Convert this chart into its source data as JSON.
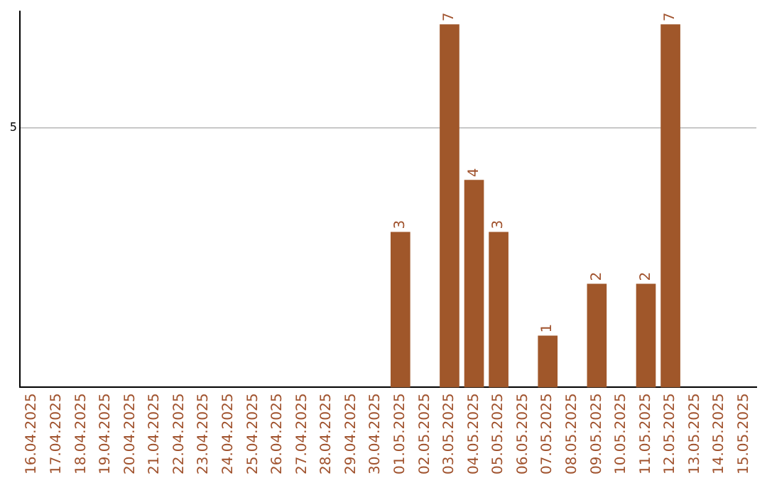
{
  "chart_data": {
    "type": "bar",
    "categories": [
      "16.04.2025",
      "17.04.2025",
      "18.04.2025",
      "19.04.2025",
      "20.04.2025",
      "21.04.2025",
      "22.04.2025",
      "23.04.2025",
      "24.04.2025",
      "25.04.2025",
      "26.04.2025",
      "27.04.2025",
      "28.04.2025",
      "29.04.2025",
      "30.04.2025",
      "01.05.2025",
      "02.05.2025",
      "03.05.2025",
      "04.05.2025",
      "05.05.2025",
      "06.05.2025",
      "07.05.2025",
      "08.05.2025",
      "09.05.2025",
      "10.05.2025",
      "11.05.2025",
      "12.05.2025",
      "13.05.2025",
      "14.05.2025",
      "15.05.2025"
    ],
    "values": [
      null,
      null,
      null,
      null,
      null,
      null,
      null,
      null,
      null,
      null,
      null,
      null,
      null,
      null,
      null,
      3,
      null,
      7,
      4,
      3,
      null,
      1,
      null,
      2,
      null,
      2,
      7,
      null,
      null,
      null
    ],
    "data_labels": true,
    "color": "#a0572a",
    "ylim": [
      0,
      7.25
    ],
    "yticks": [
      5
    ],
    "grid": "y",
    "legend": false
  }
}
